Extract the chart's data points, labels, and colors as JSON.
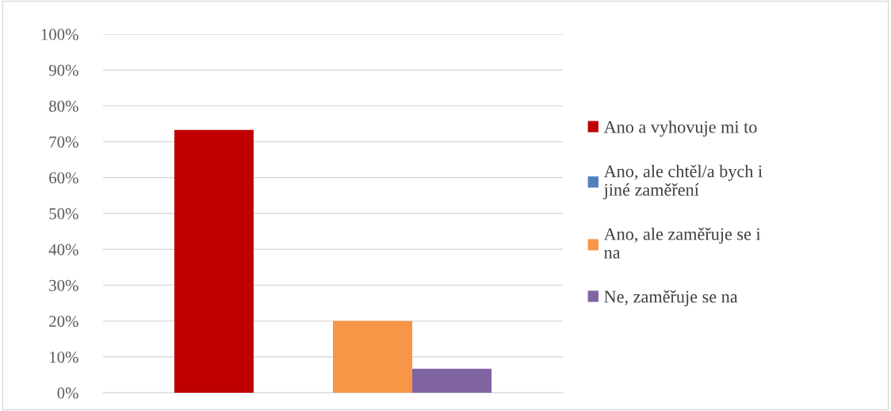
{
  "chart_data": {
    "type": "bar",
    "categories": [
      null
    ],
    "series": [
      {
        "name": "Ano a vyhovuje mi to",
        "color": "#c00000",
        "values": [
          73.3
        ]
      },
      {
        "name": "Ano, ale chtěl/a bych i jiné zaměření",
        "color": "#4f81bd",
        "values": [
          0
        ]
      },
      {
        "name": "Ano, ale zaměřuje se i na",
        "color": "#f79646",
        "values": [
          20
        ]
      },
      {
        "name": "Ne, zaměřuje se na",
        "color": "#8064a2",
        "values": [
          6.7
        ]
      }
    ],
    "ylim": [
      0,
      100
    ],
    "yticks": [
      {
        "value": 0,
        "label": "0%"
      },
      {
        "value": 10,
        "label": "10%"
      },
      {
        "value": 20,
        "label": "20%"
      },
      {
        "value": 30,
        "label": "30%"
      },
      {
        "value": 40,
        "label": "40%"
      },
      {
        "value": 50,
        "label": "50%"
      },
      {
        "value": 60,
        "label": "60%"
      },
      {
        "value": 70,
        "label": "70%"
      },
      {
        "value": 80,
        "label": "80%"
      },
      {
        "value": 90,
        "label": "90%"
      },
      {
        "value": 100,
        "label": "100%"
      }
    ],
    "grid": "y",
    "legend": "right"
  }
}
